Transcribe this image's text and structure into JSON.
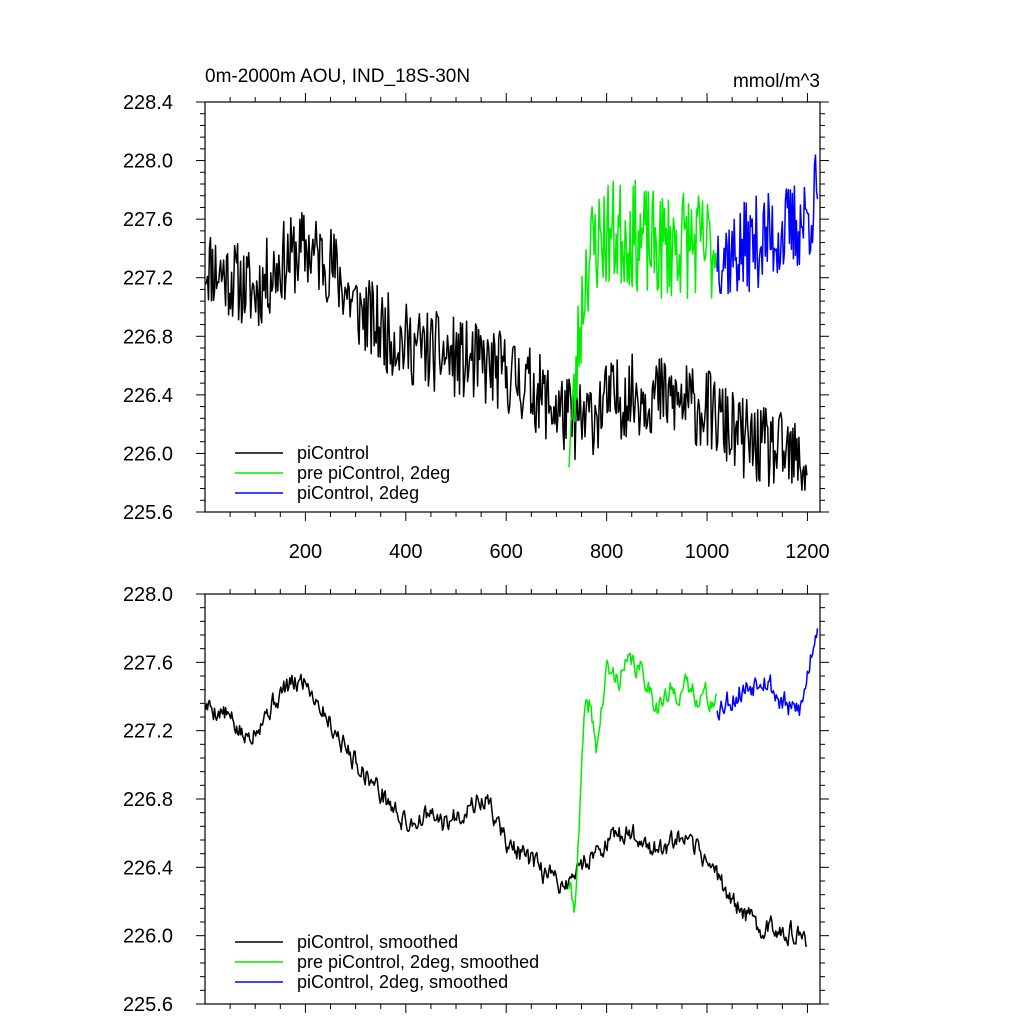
{
  "colors": {
    "piControl": "#000000",
    "pre_piControl_2deg": "#00ee00",
    "piControl_2deg": "#0000ff"
  },
  "chart_data": [
    {
      "type": "line",
      "title": "0m-2000m AOU, IND_18S-30N",
      "units": "mmol/m^3",
      "xlim": [
        0,
        1225
      ],
      "ylim": [
        225.6,
        228.4
      ],
      "x_ticks": [
        200,
        400,
        600,
        800,
        1000,
        1200
      ],
      "x_tick_labels": [
        "200",
        "400",
        "600",
        "800",
        "1000",
        "1200"
      ],
      "y_ticks": [
        225.6,
        226.0,
        226.4,
        226.8,
        227.2,
        227.6,
        228.0,
        228.4
      ],
      "y_tick_labels": [
        "225.6",
        "226.0",
        "226.4",
        "226.8",
        "227.2",
        "227.6",
        "228.0",
        "228.4"
      ],
      "legend_position": "bottom-left",
      "series": [
        {
          "name": "piControl",
          "color_key": "piControl",
          "x": [
            1,
            50,
            100,
            150,
            200,
            250,
            300,
            350,
            400,
            450,
            500,
            550,
            600,
            650,
            700,
            750,
            800,
            850,
            900,
            950,
            1000,
            1050,
            1100,
            1150,
            1200
          ],
          "values": [
            227.3,
            227.2,
            227.1,
            227.3,
            227.4,
            227.3,
            227.0,
            226.85,
            226.75,
            226.7,
            226.65,
            226.6,
            226.55,
            226.45,
            226.3,
            226.2,
            226.35,
            226.4,
            226.4,
            226.35,
            226.3,
            226.15,
            226.05,
            226.0,
            225.9
          ],
          "noise": 0.28,
          "seed": 11
        },
        {
          "name": "pre piControl, 2deg",
          "color_key": "pre_piControl_2deg",
          "x": [
            725,
            735,
            745,
            760,
            780,
            800,
            850,
            900,
            950,
            1000,
            1020
          ],
          "values": [
            226.1,
            226.3,
            226.8,
            227.3,
            227.45,
            227.5,
            227.5,
            227.4,
            227.45,
            227.4,
            227.4
          ],
          "noise": 0.38,
          "seed": 23
        },
        {
          "name": "piControl, 2deg",
          "color_key": "piControl_2deg",
          "x": [
            1020,
            1050,
            1100,
            1150,
            1200,
            1220
          ],
          "values": [
            227.4,
            227.35,
            227.45,
            227.5,
            227.6,
            227.8
          ],
          "noise": 0.32,
          "seed": 37
        }
      ]
    },
    {
      "type": "line",
      "title": "",
      "units": "",
      "xlim": [
        0,
        1225
      ],
      "ylim": [
        225.6,
        228.0
      ],
      "x_ticks": [
        200,
        400,
        600,
        800,
        1000,
        1200
      ],
      "x_tick_labels": [],
      "y_ticks": [
        225.6,
        226.0,
        226.4,
        226.8,
        227.2,
        227.6,
        228.0
      ],
      "y_tick_labels": [
        "225.6",
        "226.0",
        "226.4",
        "226.8",
        "227.2",
        "227.6",
        "228.0"
      ],
      "legend_position": "bottom-left",
      "series": [
        {
          "name": "piControl, smoothed",
          "color_key": "piControl",
          "x": [
            1,
            40,
            80,
            120,
            160,
            200,
            240,
            280,
            320,
            360,
            400,
            440,
            480,
            520,
            560,
            600,
            640,
            680,
            720,
            760,
            800,
            850,
            900,
            950,
            1000,
            1050,
            1100,
            1150,
            1200
          ],
          "values": [
            227.35,
            227.3,
            227.15,
            227.3,
            227.45,
            227.5,
            227.3,
            227.1,
            226.95,
            226.8,
            226.65,
            226.7,
            226.65,
            226.75,
            226.8,
            226.55,
            226.45,
            226.35,
            226.3,
            226.45,
            226.55,
            226.6,
            226.5,
            226.55,
            226.45,
            226.2,
            226.05,
            226.05,
            225.95
          ],
          "noise": 0.12,
          "seed": 5
        },
        {
          "name": "pre piControl, 2deg, smoothed",
          "color_key": "pre_piControl_2deg",
          "x": [
            725,
            735,
            745,
            755,
            765,
            780,
            800,
            820,
            850,
            880,
            900,
            950,
            1000,
            1020
          ],
          "values": [
            226.3,
            226.15,
            226.6,
            227.25,
            227.35,
            227.1,
            227.55,
            227.5,
            227.6,
            227.5,
            227.35,
            227.45,
            227.4,
            227.35
          ],
          "noise": 0.13,
          "seed": 41
        },
        {
          "name": "piControl, 2deg, smoothed",
          "color_key": "piControl_2deg",
          "x": [
            1020,
            1050,
            1080,
            1110,
            1140,
            1170,
            1190,
            1210,
            1220
          ],
          "values": [
            227.35,
            227.4,
            227.45,
            227.55,
            227.4,
            227.3,
            227.35,
            227.7,
            227.85
          ],
          "noise": 0.15,
          "seed": 53
        }
      ]
    }
  ]
}
